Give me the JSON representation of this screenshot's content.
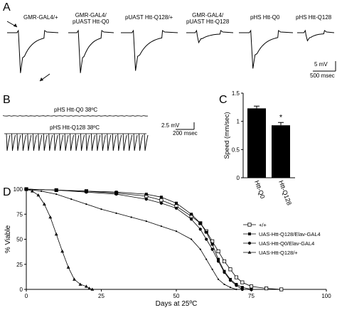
{
  "panel_labels": {
    "a": "A",
    "b": "B",
    "c": "C",
    "d": "D"
  },
  "panel_a": {
    "traces": [
      {
        "label_line1": "GMR-GAL4/+",
        "label_line2": "",
        "amplitude_mv": 9.0
      },
      {
        "label_line1": "GMR-GAL4/",
        "label_line2": "pUAST Htt-Q0",
        "amplitude_mv": 9.0
      },
      {
        "label_line1": "pUAST Htt-Q128/+",
        "label_line2": "",
        "amplitude_mv": 8.5
      },
      {
        "label_line1": "GMR-GAL4/",
        "label_line2": "pUAST Htt-Q128",
        "amplitude_mv": 2.2
      },
      {
        "label_line1": "pHS Htt-Q0",
        "label_line2": "",
        "amplitude_mv": 8.0
      },
      {
        "label_line1": "pHS Htt-Q128",
        "label_line2": "",
        "amplitude_mv": 1.8
      }
    ],
    "scale_v": "5 mV",
    "scale_t": "500 msec"
  },
  "panel_b": {
    "trace1_label": "pHS Htt-Q0 38ºC",
    "trace2_label": "pHS Htt-Q128 38ºC",
    "scale_v": "2.5 mV",
    "scale_t": "200 msec",
    "spike_count": 27
  },
  "chart_data": [
    {
      "type": "bar",
      "panel": "C",
      "categories": [
        "Htt-Q0",
        "Htt-Q128"
      ],
      "values": [
        1.23,
        0.93
      ],
      "errors": [
        0.04,
        0.05
      ],
      "ylabel": "Speed (mm/sec)",
      "ylim": [
        0,
        1.5
      ],
      "yticks": [
        "0",
        "0.5",
        "1",
        "1.5"
      ],
      "significance": "*"
    },
    {
      "type": "line",
      "panel": "D",
      "xlabel": "Days at 25ºC",
      "ylabel": "% Viable",
      "xlim": [
        0,
        100
      ],
      "ylim": [
        0,
        100
      ],
      "xticks": [
        "0",
        "25",
        "50",
        "75",
        "100"
      ],
      "yticks": [
        "0",
        "25",
        "50",
        "75",
        "100"
      ],
      "legend_position": "right",
      "series": [
        {
          "name": "+/+",
          "marker": "open-square",
          "x": [
            0,
            10,
            20,
            30,
            40,
            45,
            50,
            55,
            58,
            60,
            62,
            64,
            66,
            68,
            70,
            72,
            75,
            80,
            85
          ],
          "y": [
            100,
            99,
            98,
            96,
            93,
            89,
            83,
            73,
            66,
            58,
            48,
            38,
            28,
            20,
            12,
            7,
            3,
            1,
            0
          ]
        },
        {
          "name": "UAS-Htt-Q128/Elav-GAL4",
          "marker": "filled-square",
          "x": [
            0,
            10,
            20,
            30,
            40,
            45,
            50,
            55,
            58,
            60,
            62,
            64,
            66,
            68,
            70,
            72,
            75
          ],
          "y": [
            100,
            99,
            98,
            97,
            95,
            92,
            86,
            75,
            66,
            57,
            45,
            30,
            18,
            10,
            5,
            2,
            0
          ]
        },
        {
          "name": "UAS-Htt-Q0/Elav-GAL4",
          "marker": "filled-circle",
          "x": [
            0,
            10,
            20,
            30,
            40,
            45,
            50,
            55,
            58,
            60,
            62,
            64,
            66,
            68,
            70,
            72
          ],
          "y": [
            100,
            99,
            97,
            95,
            90,
            86,
            81,
            70,
            60,
            50,
            40,
            28,
            17,
            9,
            4,
            0
          ]
        },
        {
          "name": "UAS-Htt-Q128/+",
          "marker": "filled-triangle",
          "x": [
            0,
            2,
            4,
            6,
            8,
            10,
            12,
            14,
            16,
            18,
            20,
            21,
            22
          ],
          "y": [
            100,
            98,
            94,
            85,
            72,
            55,
            38,
            22,
            10,
            5,
            3,
            1,
            0
          ]
        },
        {
          "name": "",
          "marker": "small-dot",
          "x": [
            0,
            5,
            10,
            15,
            20,
            25,
            30,
            35,
            40,
            45,
            50,
            55,
            58,
            60,
            62,
            64,
            66,
            68,
            70
          ],
          "y": [
            100,
            98,
            95,
            90,
            85,
            80,
            76,
            72,
            68,
            63,
            58,
            50,
            40,
            30,
            20,
            10,
            5,
            2,
            0
          ]
        }
      ]
    }
  ]
}
